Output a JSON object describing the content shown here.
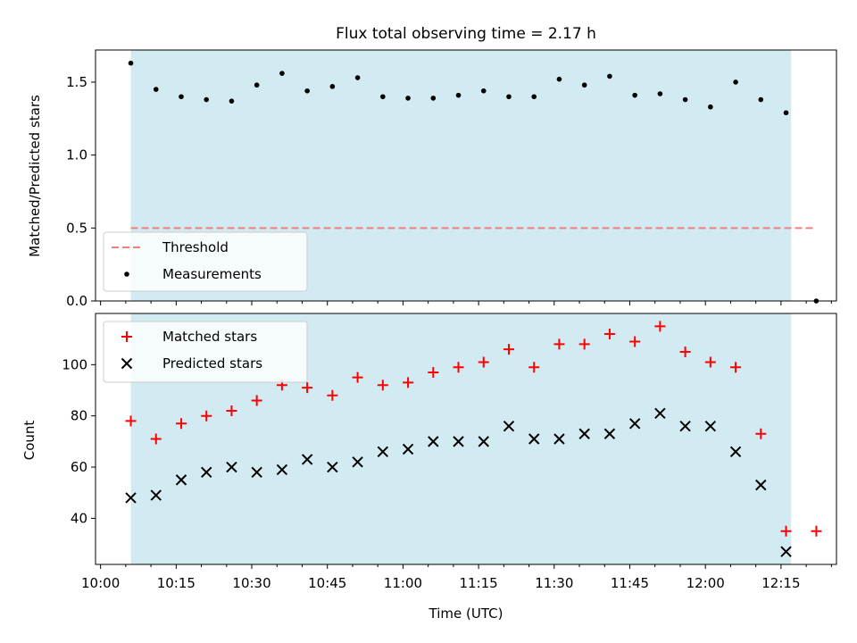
{
  "figure": {
    "title": "Flux total observing time = 2.17 h",
    "xlabel": "Time (UTC)"
  },
  "colors": {
    "span": "#add8e6",
    "threshold": "#f08080",
    "matched": "#ff0000",
    "predicted": "#000000",
    "measurement": "#000000"
  },
  "chart_data": [
    {
      "type": "scatter",
      "ylabel": "Matched/Predicted stars",
      "xlim": [
        "09:59",
        "12:26"
      ],
      "ylim": [
        0,
        1.72
      ],
      "yticks": [
        0.0,
        0.5,
        1.0,
        1.5
      ],
      "shaded_span": {
        "x0": "10:06",
        "x1": "12:17"
      },
      "legend_position": "lower-left",
      "threshold": {
        "name": "Threshold",
        "y": 0.5,
        "x0": "10:06",
        "x1": "12:22",
        "style": "dashed"
      },
      "series": [
        {
          "name": "Measurements",
          "marker": "dot",
          "x": [
            "10:06",
            "10:11",
            "10:16",
            "10:21",
            "10:26",
            "10:31",
            "10:36",
            "10:41",
            "10:46",
            "10:51",
            "10:56",
            "11:01",
            "11:06",
            "11:11",
            "11:16",
            "11:21",
            "11:26",
            "11:31",
            "11:36",
            "11:41",
            "11:46",
            "11:51",
            "11:56",
            "12:01",
            "12:06",
            "12:11",
            "12:16",
            "12:22"
          ],
          "y": [
            1.63,
            1.45,
            1.4,
            1.38,
            1.37,
            1.48,
            1.56,
            1.44,
            1.47,
            1.53,
            1.4,
            1.39,
            1.39,
            1.41,
            1.44,
            1.4,
            1.4,
            1.52,
            1.48,
            1.54,
            1.41,
            1.42,
            1.38,
            1.33,
            1.5,
            1.38,
            1.29,
            0.0
          ]
        }
      ]
    },
    {
      "type": "scatter",
      "ylabel": "Count",
      "xlim": [
        "09:59",
        "12:26"
      ],
      "ylim": [
        22,
        120
      ],
      "yticks": [
        40,
        60,
        80,
        100
      ],
      "xticks": [
        "10:00",
        "10:15",
        "10:30",
        "10:45",
        "11:00",
        "11:15",
        "11:30",
        "11:45",
        "12:00",
        "12:15"
      ],
      "shaded_span": {
        "x0": "10:06",
        "x1": "12:17"
      },
      "legend_position": "upper-left",
      "series": [
        {
          "name": "Matched stars",
          "marker": "plus",
          "x": [
            "10:06",
            "10:11",
            "10:16",
            "10:21",
            "10:26",
            "10:31",
            "10:36",
            "10:41",
            "10:46",
            "10:51",
            "10:56",
            "11:01",
            "11:06",
            "11:11",
            "11:16",
            "11:21",
            "11:26",
            "11:31",
            "11:36",
            "11:41",
            "11:46",
            "11:51",
            "11:56",
            "12:01",
            "12:06",
            "12:11",
            "12:16",
            "12:22"
          ],
          "y": [
            78,
            71,
            77,
            80,
            82,
            86,
            92,
            91,
            88,
            95,
            92,
            93,
            97,
            99,
            101,
            106,
            99,
            108,
            108,
            112,
            109,
            115,
            105,
            101,
            99,
            73,
            35,
            35
          ]
        },
        {
          "name": "Predicted stars",
          "marker": "x",
          "x": [
            "10:06",
            "10:11",
            "10:16",
            "10:21",
            "10:26",
            "10:31",
            "10:36",
            "10:41",
            "10:46",
            "10:51",
            "10:56",
            "11:01",
            "11:06",
            "11:11",
            "11:16",
            "11:21",
            "11:26",
            "11:31",
            "11:36",
            "11:41",
            "11:46",
            "11:51",
            "11:56",
            "12:01",
            "12:06",
            "12:11",
            "12:16"
          ],
          "y": [
            48,
            49,
            55,
            58,
            60,
            58,
            59,
            63,
            60,
            62,
            66,
            67,
            70,
            70,
            70,
            76,
            71,
            71,
            73,
            73,
            77,
            81,
            76,
            76,
            66,
            53,
            27
          ]
        }
      ]
    }
  ]
}
